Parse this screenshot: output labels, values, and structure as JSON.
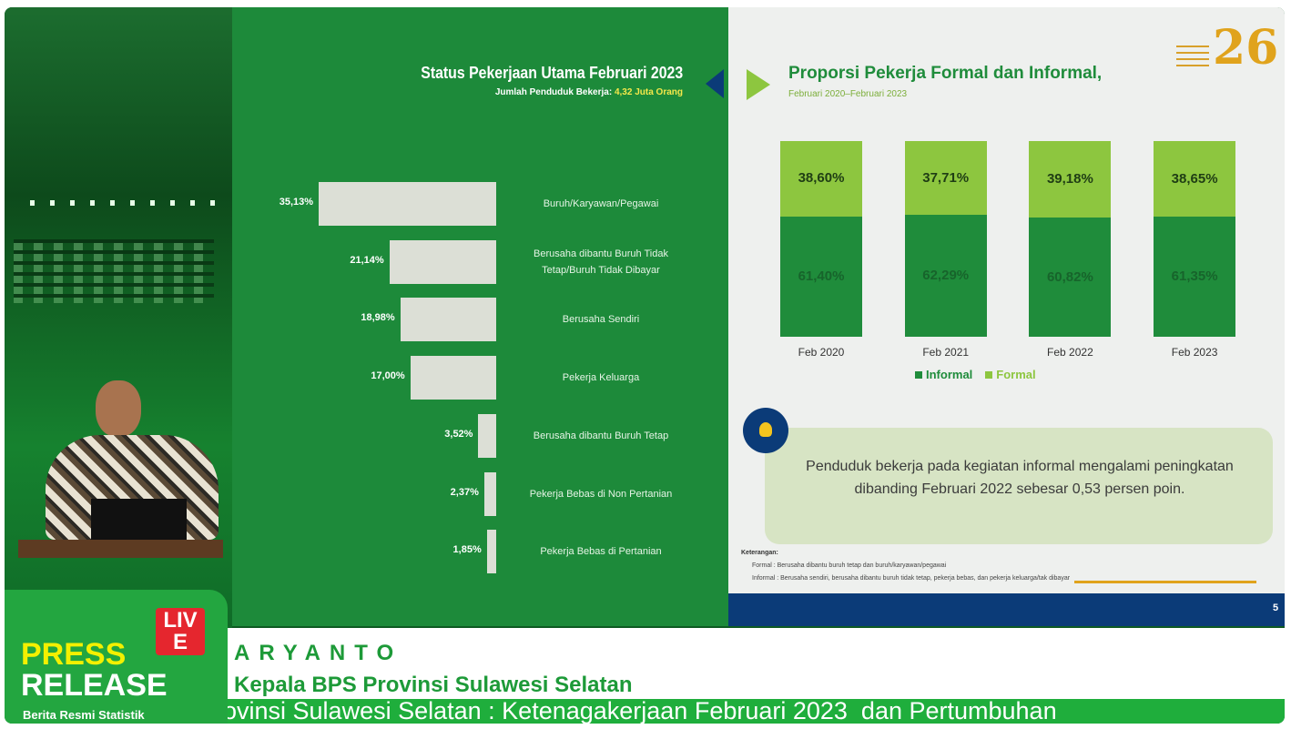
{
  "chart_data": [
    {
      "type": "bar",
      "orientation": "horizontal",
      "title": "Status Pekerjaan Utama Februari 2023",
      "subtitle": "Jumlah Penduduk Bekerja:",
      "subtitle_highlight": "4,32 Juta Orang",
      "categories": [
        "Buruh/Karyawan/Pegawai",
        "Berusaha dibantu Buruh Tidak Tetap/Buruh Tidak Dibayar",
        "Berusaha Sendiri",
        "Pekerja Keluarga",
        "Berusaha dibantu Buruh Tetap",
        "Pekerja Bebas di Non Pertanian",
        "Pekerja Bebas di Pertanian"
      ],
      "values": [
        35.13,
        21.14,
        18.98,
        17.0,
        3.52,
        2.37,
        1.85
      ],
      "value_labels": [
        "35,13%",
        "21,14%",
        "18,98%",
        "17,00%",
        "3,52%",
        "2,37%",
        "1,85%"
      ],
      "color": "#dcdfd6"
    },
    {
      "type": "bar",
      "stacked": true,
      "title": "Proporsi Pekerja Formal dan Informal,",
      "subtitle": "Februari 2020–Februari 2023",
      "categories": [
        "Feb 2020",
        "Feb 2021",
        "Feb 2022",
        "Feb 2023"
      ],
      "series": [
        {
          "name": "Informal",
          "color": "#1f8c3b",
          "values": [
            61.4,
            62.29,
            60.82,
            61.35
          ],
          "value_labels": [
            "61,40%",
            "62,29%",
            "60,82%",
            "61,35%"
          ]
        },
        {
          "name": "Formal",
          "color": "#8dc63f",
          "values": [
            38.6,
            37.71,
            39.18,
            38.65
          ],
          "value_labels": [
            "38,60%",
            "37,71%",
            "39,18%",
            "38,65%"
          ]
        }
      ],
      "legend": "bottom"
    }
  ],
  "note": "Penduduk bekerja pada kegiatan informal mengalami peningkatan dibanding Februari 2022 sebesar 0,53 persen poin.",
  "keterangan": {
    "title": "Keterangan:",
    "items": [
      "Formal : Berusaha dibantu buruh tetap dan buruh/karyawan/pegawai",
      "Informal : Berusaha sendiri, berusaha dibantu buruh tidak tetap, pekerja bebas, dan pekerja keluarga/tak dibayar"
    ]
  },
  "logo": "26",
  "page_number": "5",
  "overlay": {
    "press": "PRESS",
    "release": "RELEASE",
    "live": "LIVE",
    "tagline": "Berita Resmi Statistik",
    "speaker_name": "ARYANTO",
    "speaker_title": "Kepala BPS Provinsi Sulawesi Selatan",
    "ticker": "ovinsi Sulawesi Selatan : Ketenagakerjaan Februari 2023  dan Pertumbuhan"
  }
}
